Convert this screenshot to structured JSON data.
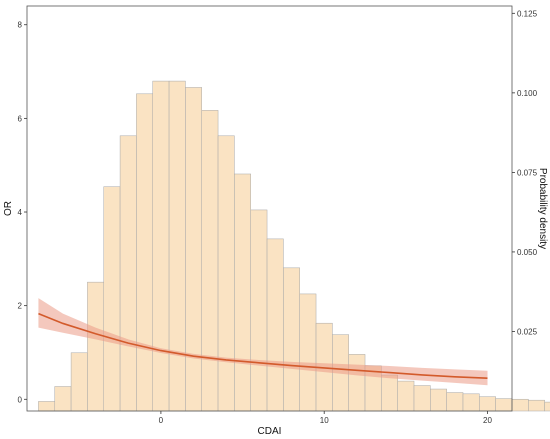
{
  "chart_data": {
    "type": "bar",
    "xlabel": "CDAI",
    "ylabel_left": "OR",
    "ylabel_right": "Probability density",
    "xlim": [
      -8.2,
      21.5
    ],
    "ylim_left": [
      -0.25,
      8.4
    ],
    "ylim_right": [
      0.0,
      0.1273
    ],
    "x_ticks": [
      {
        "value": 0,
        "label": "0"
      },
      {
        "value": 10,
        "label": "10"
      },
      {
        "value": 20,
        "label": "20"
      }
    ],
    "y_left_ticks": [
      {
        "value": 0,
        "label": "0"
      },
      {
        "value": 2,
        "label": "2"
      },
      {
        "value": 4,
        "label": "4"
      },
      {
        "value": 6,
        "label": "6"
      },
      {
        "value": 8,
        "label": "8"
      }
    ],
    "y_right_ticks": [
      {
        "value": 0.025,
        "label": "0.025"
      },
      {
        "value": 0.05,
        "label": "0.050"
      },
      {
        "value": 0.075,
        "label": "0.075"
      },
      {
        "value": 0.1,
        "label": "0.100"
      },
      {
        "value": 0.125,
        "label": "0.125"
      }
    ],
    "grid": false,
    "histogram": {
      "bin_start": -7.5,
      "bin_width": 1.0,
      "heights": [
        0.003,
        0.0077,
        0.0183,
        0.0405,
        0.0705,
        0.0865,
        0.0997,
        0.1037,
        0.1037,
        0.1017,
        0.0945,
        0.0865,
        0.0745,
        0.0632,
        0.0541,
        0.045,
        0.0368,
        0.0276,
        0.024,
        0.0178,
        0.0142,
        0.0113,
        0.0094,
        0.008,
        0.0069,
        0.0058,
        0.0054,
        0.0045,
        0.0039,
        0.0037,
        0.0034,
        0.0028
      ],
      "fill": "#fae3c3",
      "stroke": "#a8a8a8"
    },
    "series": [
      {
        "x": [
          -7.5,
          -6.0,
          -4.0,
          -2.0,
          0.0,
          2.0,
          4.0,
          6.0,
          8.0,
          10.0,
          12.0,
          14.0,
          16.0,
          18.0,
          20.0
        ],
        "y": [
          1.83,
          1.62,
          1.4,
          1.2,
          1.04,
          0.92,
          0.84,
          0.78,
          0.72,
          0.67,
          0.62,
          0.57,
          0.52,
          0.48,
          0.45
        ],
        "lower": [
          1.53,
          1.42,
          1.28,
          1.13,
          0.99,
          0.87,
          0.79,
          0.72,
          0.65,
          0.58,
          0.51,
          0.45,
          0.4,
          0.35,
          0.3
        ],
        "upper": [
          2.16,
          1.83,
          1.53,
          1.28,
          1.09,
          0.97,
          0.89,
          0.84,
          0.8,
          0.77,
          0.74,
          0.71,
          0.67,
          0.64,
          0.61
        ],
        "color": "#d35a2b",
        "band_color": "#eb9a86"
      }
    ]
  }
}
